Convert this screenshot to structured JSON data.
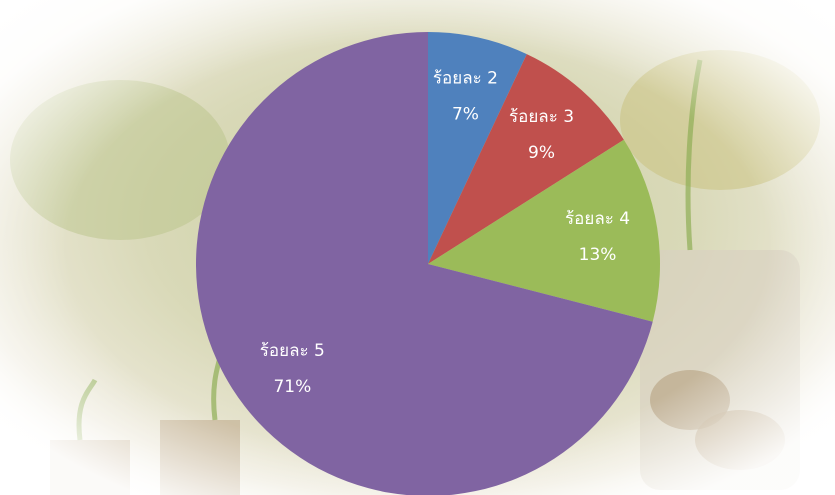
{
  "chart_data": {
    "type": "pie",
    "categories": [
      "ร้อยละ 2",
      "ร้อยละ 3",
      "ร้อยละ 4",
      "ร้อยละ 5"
    ],
    "values": [
      7,
      9,
      13,
      71
    ],
    "value_labels": [
      "7%",
      "9%",
      "13%",
      "71%"
    ],
    "colors": [
      "#4f81bd",
      "#c0504d",
      "#9bbb59",
      "#8064a2"
    ]
  }
}
